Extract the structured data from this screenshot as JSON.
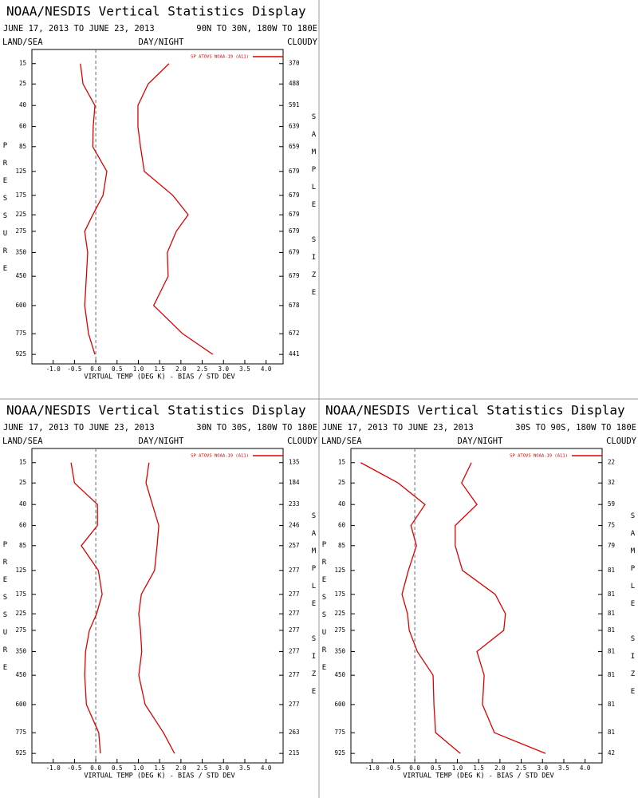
{
  "chart_data": [
    {
      "type": "line",
      "title": "NOAA/NESDIS Vertical Statistics Display",
      "subtitle": "JUNE 17, 2013 TO JUNE 23, 2013",
      "region": "90N TO 30N, 180W TO 180E",
      "left_label": "LAND/SEA",
      "center_label": "DAY/NIGHT",
      "right_label": "CLOUDY",
      "xlabel": "VIRTUAL TEMP (DEG K) - BIAS / STD DEV",
      "ylabel": "PRESSURE",
      "y2label": "SAMPLE SIZE",
      "y": [
        15,
        25,
        40,
        60,
        85,
        125,
        175,
        225,
        275,
        350,
        450,
        600,
        775,
        925
      ],
      "sample_sizes": [
        370,
        488,
        591,
        639,
        659,
        679,
        679,
        679,
        679,
        679,
        679,
        678,
        672,
        441
      ],
      "series": [
        {
          "name": "SP ATOVS NOAA-19 (A11)",
          "color": "#dd0000",
          "values": [
            -0.36,
            -0.3,
            -0.02,
            -0.06,
            -0.07,
            0.26,
            0.17,
            -0.07,
            -0.26,
            -0.19,
            -0.22,
            -0.26,
            -0.17,
            -0.02
          ]
        },
        {
          "color": "#dd0000",
          "values": [
            1.72,
            1.23,
            0.99,
            0.99,
            1.05,
            1.14,
            1.81,
            2.17,
            1.89,
            1.68,
            1.7,
            1.36,
            2.04,
            2.75
          ]
        }
      ],
      "xlim": [
        -1.5,
        4.4
      ],
      "ylim": [
        10,
        1000
      ],
      "xticks": [
        {
          "value": -1,
          "label": "-1.0"
        },
        {
          "value": -0.5,
          "label": "-0.5"
        },
        {
          "value": 0,
          "label": "0.0"
        },
        {
          "value": 0.5,
          "label": "0.5"
        },
        {
          "value": 1,
          "label": "1.0"
        },
        {
          "value": 1.5,
          "label": "1.5"
        },
        {
          "value": 2,
          "label": "2.0"
        },
        {
          "value": 2.5,
          "label": "2.5"
        },
        {
          "value": 3,
          "label": "3.0"
        },
        {
          "value": 3.5,
          "label": "3.5"
        },
        {
          "value": 4,
          "label": "4.0"
        }
      ]
    },
    {
      "type": "line",
      "title": "NOAA/NESDIS Vertical Statistics Display",
      "subtitle": "JUNE 17, 2013 TO JUNE 23, 2013",
      "region": "30N TO 30S, 180W TO 180E",
      "left_label": "LAND/SEA",
      "center_label": "DAY/NIGHT",
      "right_label": "CLOUDY",
      "xlabel": "VIRTUAL TEMP (DEG K) - BIAS / STD DEV",
      "ylabel": "PRESSURE",
      "y2label": "SAMPLE SIZE",
      "y": [
        15,
        25,
        40,
        60,
        85,
        125,
        175,
        225,
        275,
        350,
        450,
        600,
        775,
        925
      ],
      "sample_sizes": [
        135,
        184,
        233,
        246,
        257,
        277,
        277,
        277,
        277,
        277,
        277,
        277,
        263,
        215
      ],
      "series": [
        {
          "name": "SP ATOVS NOAA-19 (A11)",
          "color": "#dd0000",
          "values": [
            -0.58,
            -0.5,
            0.04,
            0.04,
            -0.34,
            0.06,
            0.15,
            0.02,
            -0.15,
            -0.24,
            -0.26,
            -0.22,
            0.07,
            0.11
          ]
        },
        {
          "color": "#dd0000",
          "values": [
            1.25,
            1.18,
            1.33,
            1.48,
            1.44,
            1.38,
            1.07,
            1.01,
            1.05,
            1.08,
            1.01,
            1.16,
            1.59,
            1.85
          ]
        }
      ],
      "xlim": [
        -1.5,
        4.4
      ],
      "ylim": [
        10,
        1000
      ],
      "xticks": [
        {
          "value": -1,
          "label": "-1.0"
        },
        {
          "value": -0.5,
          "label": "-0.5"
        },
        {
          "value": 0,
          "label": "0.0"
        },
        {
          "value": 0.5,
          "label": "0.5"
        },
        {
          "value": 1,
          "label": "1.0"
        },
        {
          "value": 1.5,
          "label": "1.5"
        },
        {
          "value": 2,
          "label": "2.0"
        },
        {
          "value": 2.5,
          "label": "2.5"
        },
        {
          "value": 3,
          "label": "3.0"
        },
        {
          "value": 3.5,
          "label": "3.5"
        },
        {
          "value": 4,
          "label": "4.0"
        }
      ]
    },
    {
      "type": "line",
      "title": "NOAA/NESDIS Vertical Statistics Display",
      "subtitle": "JUNE 17, 2013 TO JUNE 23, 2013",
      "region": "30S TO 90S, 180W TO 180E",
      "left_label": "LAND/SEA",
      "center_label": "DAY/NIGHT",
      "right_label": "CLOUDY",
      "xlabel": "VIRTUAL TEMP (DEG K) - BIAS / STD DEV",
      "ylabel": "PRESSURE",
      "y2label": "SAMPLE SIZE",
      "y": [
        15,
        25,
        40,
        60,
        85,
        125,
        175,
        225,
        275,
        350,
        450,
        600,
        775,
        925
      ],
      "sample_sizes": [
        22,
        32,
        59,
        75,
        79,
        81,
        81,
        81,
        81,
        81,
        81,
        81,
        81,
        42
      ],
      "series": [
        {
          "name": "SP ATOVS NOAA-19 (A11)",
          "color": "#dd0000",
          "values": [
            -1.27,
            -0.39,
            0.24,
            -0.09,
            0.04,
            -0.15,
            -0.3,
            -0.17,
            -0.13,
            0.06,
            0.43,
            0.45,
            0.49,
            1.07
          ]
        },
        {
          "color": "#dd0000",
          "values": [
            1.33,
            1.1,
            1.46,
            0.95,
            0.95,
            1.12,
            1.89,
            2.13,
            2.09,
            1.46,
            1.63,
            1.59,
            1.87,
            3.07
          ]
        }
      ],
      "xlim": [
        -1.5,
        4.4
      ],
      "ylim": [
        10,
        1000
      ],
      "xticks": [
        {
          "value": -1,
          "label": "-1.0"
        },
        {
          "value": -0.5,
          "label": "-0.5"
        },
        {
          "value": 0,
          "label": "0.0"
        },
        {
          "value": 0.5,
          "label": "0.5"
        },
        {
          "value": 1,
          "label": "1.0"
        },
        {
          "value": 1.5,
          "label": "1.5"
        },
        {
          "value": 2,
          "label": "2.0"
        },
        {
          "value": 2.5,
          "label": "2.5"
        },
        {
          "value": 3,
          "label": "3.0"
        },
        {
          "value": 3.5,
          "label": "3.5"
        },
        {
          "value": 4,
          "label": "4.0"
        }
      ]
    }
  ]
}
